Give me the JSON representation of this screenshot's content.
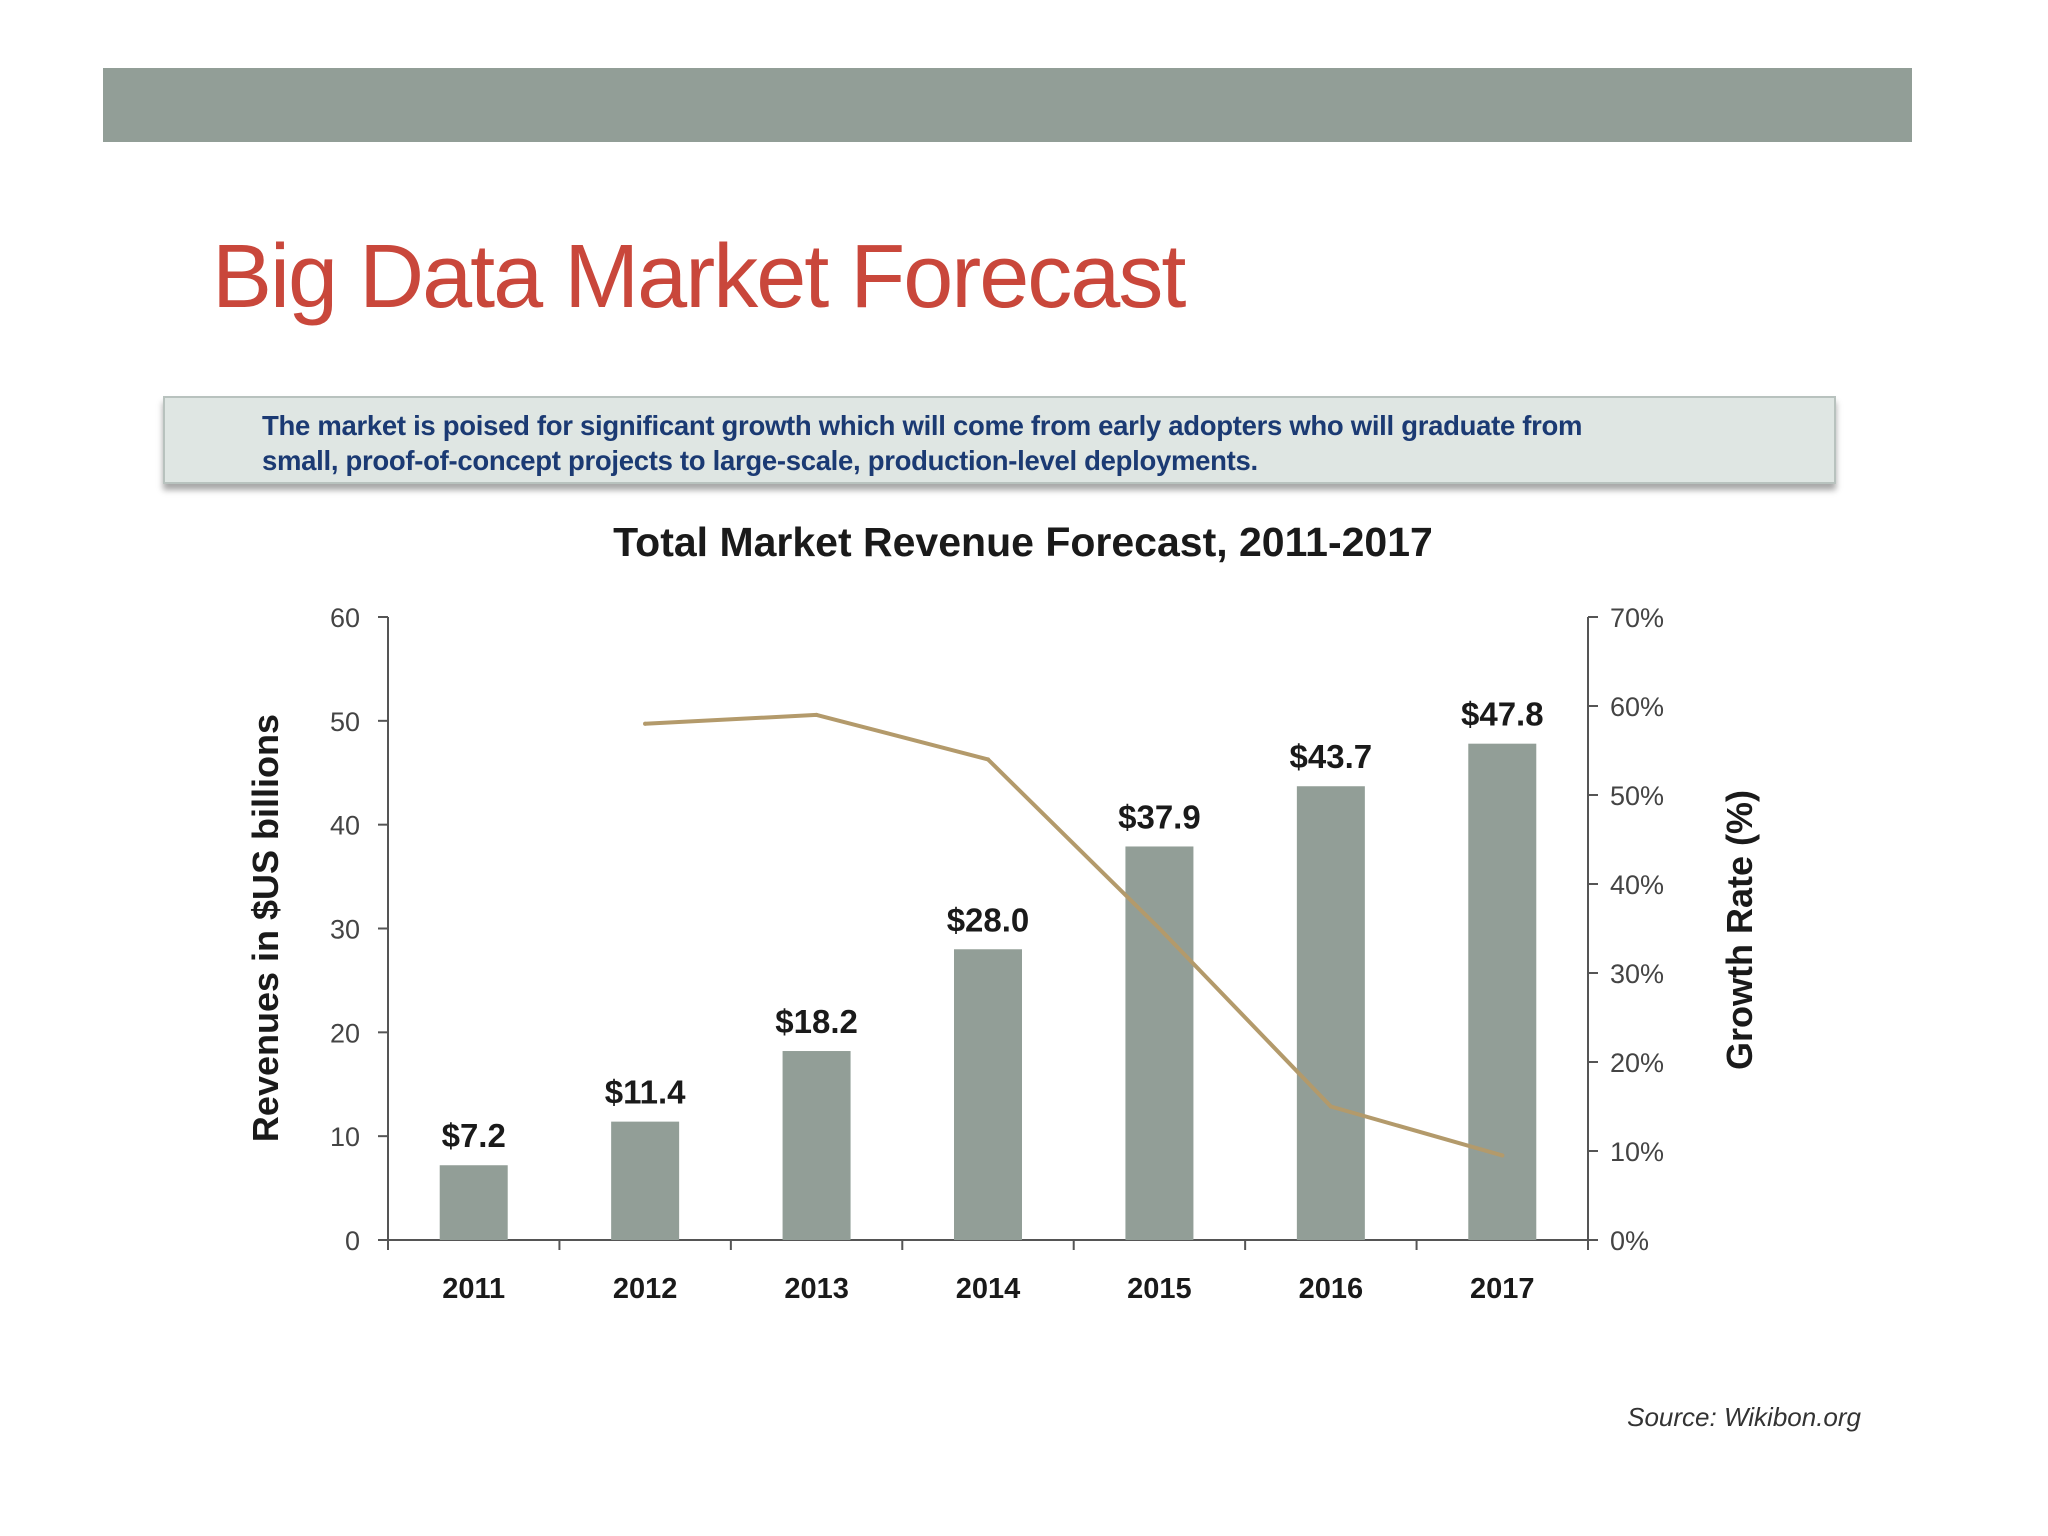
{
  "slide": {
    "title": "Big Data Market Forecast",
    "callout_line1": "The market is poised for significant growth which will come from early adopters who will graduate from",
    "callout_line2": "small, proof-of-concept projects to large-scale, production-level deployments.",
    "source": "Source: Wikibon.org"
  },
  "colors": {
    "band": "#929e97",
    "title": "#c9473b",
    "callout_text": "#1b3a73",
    "bar": "#929e97",
    "line": "#b39a6b",
    "axis": "#555555",
    "text": "#1a1a1a"
  },
  "chart_data": {
    "type": "bar",
    "title": "Total Market Revenue Forecast, 2011-2017",
    "categories": [
      "2011",
      "2012",
      "2013",
      "2014",
      "2015",
      "2016",
      "2017"
    ],
    "ylabel": "Revenues in $US billions",
    "ylabel_right": "Growth Rate (%)",
    "ylim": [
      0,
      60
    ],
    "yticks": [
      "0",
      "10",
      "20",
      "30",
      "40",
      "50",
      "60"
    ],
    "ylim_right": [
      0,
      70
    ],
    "yticks_right": [
      "0%",
      "10%",
      "20%",
      "30%",
      "40%",
      "50%",
      "60%",
      "70%"
    ],
    "series": [
      {
        "values": [
          7.2,
          11.4,
          18.2,
          28.0,
          37.9,
          43.7,
          47.8
        ],
        "labels": [
          "$7.2",
          "$11.4",
          "$18.2",
          "$28.0",
          "$37.9",
          "$43.7",
          "$47.8"
        ],
        "axis": "left",
        "type": "bar"
      },
      {
        "values": [
          null,
          58,
          59,
          54,
          35,
          15,
          9.5
        ],
        "axis": "right",
        "type": "line"
      }
    ],
    "grid": false,
    "legend": "none"
  }
}
